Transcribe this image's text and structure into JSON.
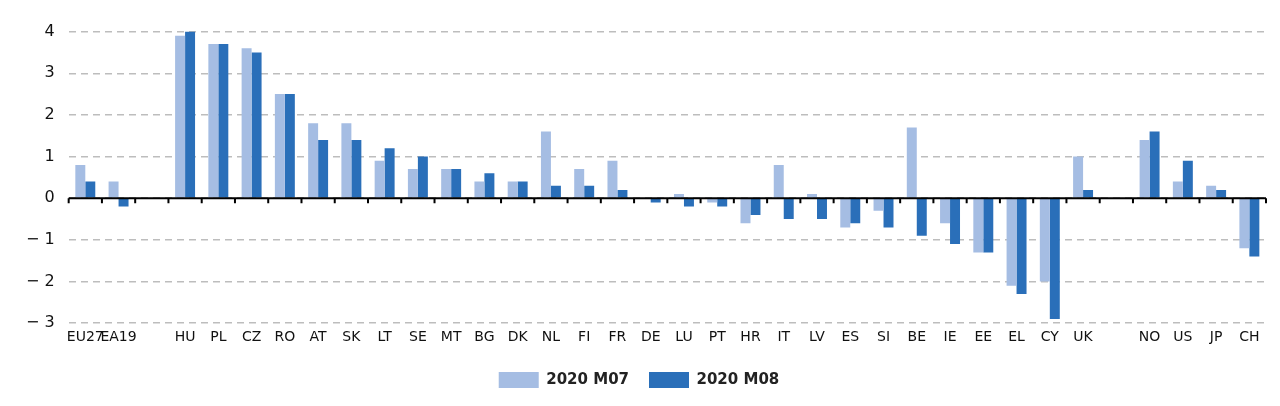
{
  "chart_data": {
    "type": "bar",
    "categories": [
      "EU27",
      "EA19",
      null,
      "HU",
      "PL",
      "CZ",
      "RO",
      "AT",
      "SK",
      "LT",
      "SE",
      "MT",
      "BG",
      "DK",
      "NL",
      "FI",
      "FR",
      "DE",
      "LU",
      "PT",
      "HR",
      "IT",
      "LV",
      "ES",
      "SI",
      "BE",
      "IE",
      "EE",
      "EL",
      "CY",
      "UK",
      null,
      "NO",
      "US",
      "JP",
      "CH"
    ],
    "series": [
      {
        "name": "2020 M07",
        "color": "#a5bde3",
        "values": [
          0.8,
          0.4,
          null,
          3.9,
          3.7,
          3.6,
          2.5,
          1.8,
          1.8,
          0.9,
          0.7,
          0.7,
          0.4,
          0.4,
          1.6,
          0.7,
          0.9,
          0.0,
          0.1,
          -0.1,
          -0.6,
          0.8,
          0.1,
          -0.7,
          -0.3,
          1.7,
          -0.6,
          -1.3,
          -2.1,
          -2.0,
          1.0,
          null,
          1.4,
          0.4,
          0.3,
          -1.2
        ]
      },
      {
        "name": "2020 M08",
        "color": "#2a6fb9",
        "values": [
          0.4,
          -0.2,
          null,
          4.0,
          3.7,
          3.5,
          2.5,
          1.4,
          1.4,
          1.2,
          1.0,
          0.7,
          0.6,
          0.4,
          0.3,
          0.3,
          0.2,
          -0.1,
          -0.2,
          -0.2,
          -0.4,
          -0.5,
          -0.5,
          -0.6,
          -0.7,
          -0.9,
          -1.1,
          -1.3,
          -2.3,
          -2.9,
          0.2,
          null,
          1.6,
          0.9,
          0.2,
          -1.4
        ]
      }
    ],
    "ylim": [
      -3,
      4
    ],
    "yticks": [
      {
        "value": -3,
        "label": "− 3"
      },
      {
        "value": -2,
        "label": "− 2"
      },
      {
        "value": -1,
        "label": "− 1"
      },
      0,
      1,
      2,
      3,
      4
    ],
    "grid": "y",
    "legend": "bottom"
  }
}
